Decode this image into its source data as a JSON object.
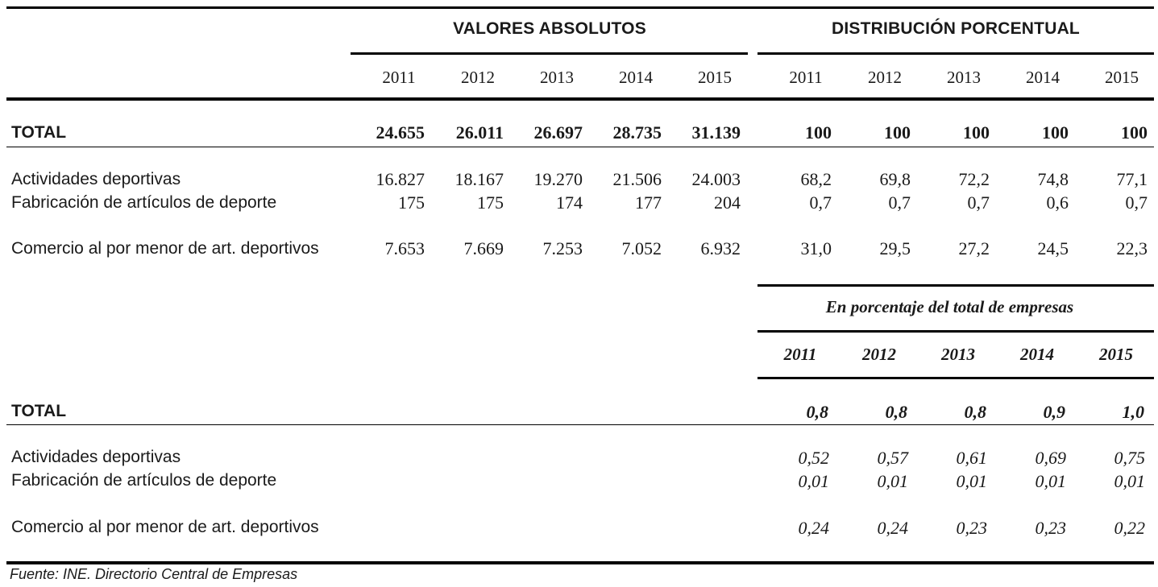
{
  "table1": {
    "group_left": "VALORES ABSOLUTOS",
    "group_right": "DISTRIBUCIÓN PORCENTUAL",
    "years": [
      "2011",
      "2012",
      "2013",
      "2014",
      "2015"
    ],
    "rows": [
      {
        "label": "TOTAL",
        "abs": [
          "24.655",
          "26.011",
          "26.697",
          "28.735",
          "31.139"
        ],
        "pct": [
          "100",
          "100",
          "100",
          "100",
          "100"
        ]
      },
      {
        "label": "Actividades deportivas",
        "abs": [
          "16.827",
          "18.167",
          "19.270",
          "21.506",
          "24.003"
        ],
        "pct": [
          "68,2",
          "69,8",
          "72,2",
          "74,8",
          "77,1"
        ]
      },
      {
        "label": "Fabricación de artículos de deporte",
        "abs": [
          "175",
          "175",
          "174",
          "177",
          "204"
        ],
        "pct": [
          "0,7",
          "0,7",
          "0,7",
          "0,6",
          "0,7"
        ]
      },
      {
        "label": "Comercio al por menor de art. deportivos",
        "abs": [
          "7.653",
          "7.669",
          "7.253",
          "7.052",
          "6.932"
        ],
        "pct": [
          "31,0",
          "29,5",
          "27,2",
          "24,5",
          "22,3"
        ]
      }
    ]
  },
  "table2": {
    "group": "En porcentaje del total de empresas",
    "years": [
      "2011",
      "2012",
      "2013",
      "2014",
      "2015"
    ],
    "rows": [
      {
        "label": "TOTAL",
        "values": [
          "0,8",
          "0,8",
          "0,8",
          "0,9",
          "1,0"
        ]
      },
      {
        "label": "Actividades deportivas",
        "values": [
          "0,52",
          "0,57",
          "0,61",
          "0,69",
          "0,75"
        ]
      },
      {
        "label": "Fabricación de artículos de deporte",
        "values": [
          "0,01",
          "0,01",
          "0,01",
          "0,01",
          "0,01"
        ]
      },
      {
        "label": "Comercio al por menor de art. deportivos",
        "values": [
          "0,24",
          "0,24",
          "0,23",
          "0,23",
          "0,22"
        ]
      }
    ]
  },
  "source": "Fuente: INE. Directorio Central de Empresas"
}
